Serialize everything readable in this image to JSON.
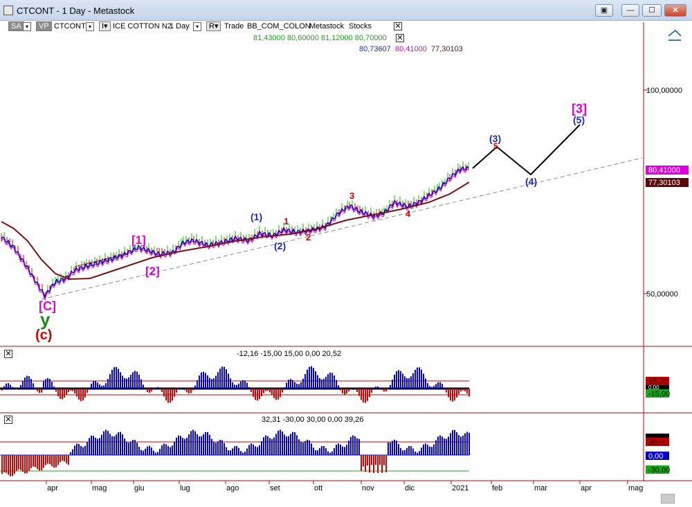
{
  "window": {
    "title": "CTCONT - 1 Day - Metastock",
    "buttons": [
      "▣",
      "—",
      "☐",
      "✕"
    ]
  },
  "toolbar": {
    "sa_label": "SA",
    "sa_drop": "▾",
    "vp_label": "VP",
    "symbol": "CTCONT",
    "symbol_drop": "▾",
    "ir_btn": "I▾",
    "instrument": "ICE COTTON N2",
    "period": "1 Day",
    "period_drop": "▾",
    "r_btn": "R▾",
    "trade": "Trade",
    "account": "BB_COM_COLON",
    "platform": "Metastock",
    "asset": "Stocks",
    "close": "✕"
  },
  "price_header": {
    "ohlc": "81,43000 80,60000 81,12000 80,70000",
    "ma1": "80,73607",
    "ma2": "80,41000",
    "ma3": "77,30103",
    "close": "✕"
  },
  "price_axis": {
    "tick_high": "100,00000",
    "tick_low": "50,00000",
    "tag_ma2": "80,41000",
    "tag_ma3": "77,30103"
  },
  "wave_labels": {
    "c_bracket": "[C]",
    "y": "y",
    "c_paren": "(c)",
    "w1_bracket": "[1]",
    "w2_bracket": "[2]",
    "w1_paren": "(1)",
    "w2_paren": "(2)",
    "w3_paren": "(3)",
    "w4_paren": "(4)",
    "w5_paren": "(5)",
    "w3_bracket": "[3]",
    "n1": "1",
    "n2": "2",
    "n3": "3",
    "n4": "4",
    "n5": "5"
  },
  "indicator1": {
    "close": "✕",
    "values": "-12,16 -15,00 15,00 0,00 20,52",
    "tag_high": "15,00",
    "tag_mid": "0,00",
    "tag_low": "-15,00"
  },
  "indicator2": {
    "close": "✕",
    "values": "32,31 -30,00 30,00 0,00 39,26",
    "tag_high": "30,00",
    "tag_mid": "0,00",
    "tag_low": "-30,00"
  },
  "x_axis": {
    "months": [
      "apr",
      "mag",
      "giu",
      "lug",
      "ago",
      "set",
      "ott",
      "nov",
      "dic",
      "2021",
      "feb",
      "mar",
      "apr",
      "mag"
    ]
  },
  "colors": {
    "blue_line": "#0000b0",
    "ma_brown": "#7a1010",
    "magenta": "#e000e0",
    "green_bars": "#00c000",
    "red_bars": "#d00000",
    "panel_border": "#c00000"
  }
}
